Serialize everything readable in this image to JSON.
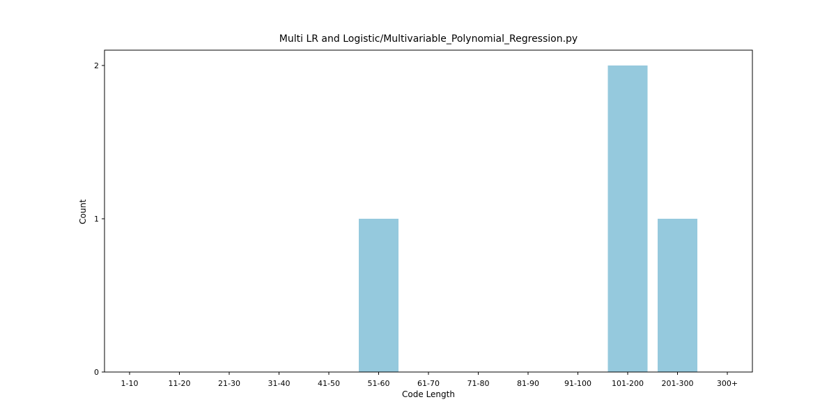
{
  "chart_data": {
    "type": "bar",
    "title": "Multi LR and Logistic/Multivariable_Polynomial_Regression.py",
    "xlabel": "Code Length",
    "ylabel": "Count",
    "categories": [
      "1-10",
      "11-20",
      "21-30",
      "31-40",
      "41-50",
      "51-60",
      "61-70",
      "71-80",
      "81-90",
      "91-100",
      "101-200",
      "201-300",
      "300+"
    ],
    "values": [
      0,
      0,
      0,
      0,
      0,
      1,
      0,
      0,
      0,
      0,
      2,
      1,
      0
    ],
    "ylim": [
      0,
      2.1
    ],
    "yticks": [
      "0",
      "1",
      "2"
    ],
    "grid": false,
    "bar_color": "#95c9dd"
  }
}
